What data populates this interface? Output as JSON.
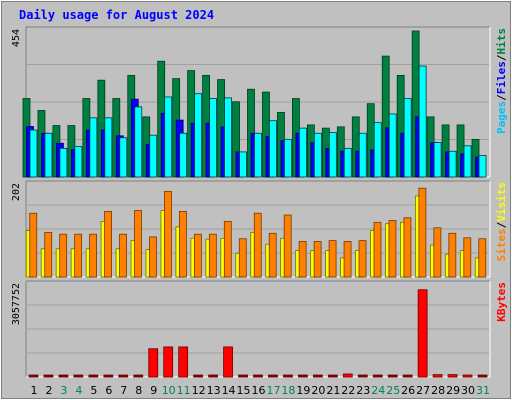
{
  "chart_data": {
    "type": "bar",
    "title": "Daily usage for August 2024",
    "days": [
      "1",
      "2",
      "3",
      "4",
      "5",
      "6",
      "7",
      "8",
      "9",
      "10",
      "11",
      "12",
      "13",
      "14",
      "15",
      "16",
      "17",
      "18",
      "19",
      "20",
      "21",
      "22",
      "23",
      "24",
      "25",
      "26",
      "27",
      "28",
      "29",
      "30",
      "31"
    ],
    "weekend_days": [
      "3",
      "4",
      "10",
      "11",
      "17",
      "18",
      "24",
      "25",
      "31"
    ],
    "panels": [
      {
        "name": "hits-files-pages",
        "max_label": "454",
        "ymax": 454,
        "series": [
          {
            "name": "Hits",
            "color": "#008040",
            "values": [
              244,
              207,
              160,
              160,
              244,
              301,
              244,
              316,
              187,
              360,
              306,
              331,
              316,
              303,
              234,
              273,
              264,
              201,
              244,
              162,
              152,
              156,
              187,
              228,
              376,
              316,
              454,
              187,
              162,
              162,
              117
            ]
          },
          {
            "name": "Files",
            "color": "#0000ff",
            "values": [
              157,
              136,
              105,
              86,
              146,
              146,
              128,
              242,
              101,
              198,
              177,
              167,
              167,
              156,
              78,
              136,
              126,
              113,
              136,
              107,
              89,
              80,
              80,
              84,
              153,
              136,
              187,
              107,
              78,
              72,
              62
            ]
          },
          {
            "name": "Pages",
            "color": "#00ffff",
            "values": [
              146,
              136,
              89,
              95,
              184,
              184,
              122,
              218,
              130,
              249,
              136,
              259,
              244,
              246,
              78,
              136,
              175,
              117,
              152,
              136,
              138,
              89,
              136,
              169,
              196,
              244,
              345,
              107,
              80,
              97,
              67
            ]
          }
        ],
        "legend": [
          "Pages",
          "Files",
          "Hits"
        ],
        "legend_colors": [
          "#00c0ff",
          "#0000ff",
          "#008040"
        ]
      },
      {
        "name": "sites-visits",
        "max_label": "202",
        "ymax": 202,
        "series": [
          {
            "name": "Visits",
            "color": "#ffff00",
            "values": [
              102,
              62,
              62,
              62,
              62,
              122,
              62,
              80,
              60,
              146,
              110,
              85,
              83,
              85,
              52,
              98,
              72,
              85,
              58,
              58,
              58,
              42,
              58,
              102,
              117,
              120,
              178,
              70,
              50,
              58,
              42
            ]
          },
          {
            "name": "Sites",
            "color": "#ff8000",
            "values": [
              140,
              98,
              94,
              94,
              94,
              144,
              94,
              146,
              88,
              188,
              144,
              94,
              94,
              122,
              84,
              140,
              96,
              136,
              78,
              78,
              80,
              78,
              80,
              120,
              124,
              130,
              195,
              108,
              96,
              86,
              84
            ]
          }
        ],
        "legend": [
          "Sites",
          "Visits"
        ],
        "legend_colors": [
          "#ff8000",
          "#ffff00"
        ]
      },
      {
        "name": "kbytes",
        "max_label": "3057752",
        "ymax": 3057752,
        "series": [
          {
            "name": "KBytes",
            "color": "#ff0000",
            "values": [
              0,
              0,
              0,
              0,
              0,
              0,
              0,
              0,
              940000,
              1000000,
              1000000,
              0,
              0,
              1000000,
              0,
              0,
              0,
              0,
              0,
              0,
              0,
              100000,
              0,
              0,
              0,
              0,
              2900000,
              80000,
              80000,
              60000,
              0
            ]
          }
        ],
        "legend": [
          "KBytes"
        ],
        "legend_colors": [
          "#ff0000"
        ]
      }
    ],
    "legend_separator": "/"
  },
  "colors": {
    "background": "#c0c0c0",
    "title": "#0000ff",
    "weekday_label": "#000000",
    "weekend_label": "#00805c"
  }
}
